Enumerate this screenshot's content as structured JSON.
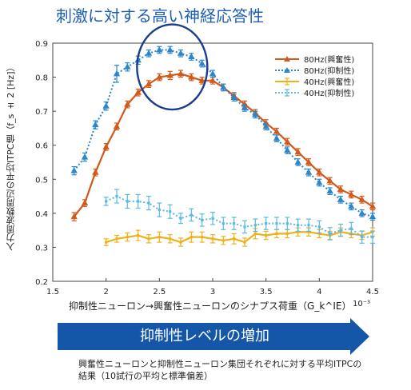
{
  "title": "刺激に対する高い神経応答性",
  "banner": "抑制性レベルの増加",
  "caption": "興奮性ニューロンと抑制性ニューロン集団それぞれに対する平均ITPCの結果（10試行の平均と標準偏差）",
  "colors": {
    "orange": "#d2581c",
    "blue": "#2b86cd",
    "yellow": "#f0b01c",
    "lightblue": "#5ab9e3",
    "circle": "#1a3d8c",
    "banner": "#1457a8"
  },
  "chart_data": {
    "type": "line",
    "xlabel": "抑制性ニューロン→興奮性ニューロンのシナプス荷重（G_k^IE）",
    "x_exponent": "10⁻³",
    "ylabel": "入力周波数周辺の平均ITPC値（f_s ± 2 [Hz]）",
    "xlim": [
      1.5,
      4.5
    ],
    "ylim": [
      0.2,
      0.9
    ],
    "xticks": [
      "1.5",
      "2",
      "2.5",
      "3",
      "3.5",
      "4",
      "4.5"
    ],
    "yticks": [
      "0.2",
      "0.3",
      "0.4",
      "0.5",
      "0.6",
      "0.7",
      "0.8",
      "0.9"
    ],
    "legend_position": "top-right",
    "grid": false,
    "series": [
      {
        "name": "80Hz(興奮性)",
        "style": "solid",
        "marker": "triangle",
        "color_key": "orange",
        "x": [
          1.7,
          1.8,
          1.9,
          2.0,
          2.1,
          2.2,
          2.3,
          2.4,
          2.5,
          2.6,
          2.7,
          2.8,
          2.9,
          3.0,
          3.1,
          3.2,
          3.3,
          3.4,
          3.5,
          3.6,
          3.7,
          3.8,
          3.9,
          4.0,
          4.1,
          4.2,
          4.3,
          4.4,
          4.5
        ],
        "y": [
          0.39,
          0.43,
          0.52,
          0.595,
          0.655,
          0.72,
          0.755,
          0.78,
          0.8,
          0.805,
          0.81,
          0.8,
          0.79,
          0.79,
          0.77,
          0.745,
          0.72,
          0.695,
          0.665,
          0.64,
          0.61,
          0.58,
          0.55,
          0.52,
          0.495,
          0.47,
          0.455,
          0.44,
          0.42
        ],
        "err": [
          0.012,
          0.01,
          0.01,
          0.01,
          0.01,
          0.01,
          0.01,
          0.01,
          0.01,
          0.012,
          0.01,
          0.01,
          0.01,
          0.01,
          0.01,
          0.01,
          0.01,
          0.01,
          0.01,
          0.01,
          0.01,
          0.01,
          0.01,
          0.01,
          0.01,
          0.01,
          0.01,
          0.01,
          0.01
        ]
      },
      {
        "name": "80Hz(抑制性)",
        "style": "dotted",
        "marker": "triangle",
        "color_key": "blue",
        "x": [
          1.7,
          1.8,
          1.9,
          2.0,
          2.1,
          2.2,
          2.3,
          2.4,
          2.5,
          2.6,
          2.7,
          2.8,
          2.9,
          3.0,
          3.1,
          3.2,
          3.3,
          3.4,
          3.5,
          3.6,
          3.7,
          3.8,
          3.9,
          4.0,
          4.1,
          4.2,
          4.3,
          4.4,
          4.5
        ],
        "y": [
          0.525,
          0.565,
          0.66,
          0.715,
          0.81,
          0.83,
          0.85,
          0.87,
          0.88,
          0.88,
          0.87,
          0.86,
          0.84,
          0.81,
          0.77,
          0.74,
          0.71,
          0.69,
          0.655,
          0.62,
          0.585,
          0.55,
          0.52,
          0.49,
          0.465,
          0.44,
          0.42,
          0.4,
          0.39
        ],
        "err": [
          0.012,
          0.012,
          0.012,
          0.012,
          0.025,
          0.012,
          0.012,
          0.01,
          0.01,
          0.01,
          0.01,
          0.01,
          0.01,
          0.01,
          0.01,
          0.01,
          0.01,
          0.01,
          0.01,
          0.01,
          0.01,
          0.01,
          0.01,
          0.01,
          0.01,
          0.01,
          0.01,
          0.01,
          0.01
        ]
      },
      {
        "name": "40Hz(興奮性)",
        "style": "solid",
        "marker": "x",
        "color_key": "yellow",
        "x": [
          2.0,
          2.1,
          2.2,
          2.3,
          2.4,
          2.5,
          2.6,
          2.7,
          2.8,
          2.9,
          3.0,
          3.1,
          3.2,
          3.3,
          3.4,
          3.5,
          3.6,
          3.7,
          3.8,
          3.9,
          4.0,
          4.1,
          4.2,
          4.3,
          4.4,
          4.5
        ],
        "y": [
          0.315,
          0.325,
          0.33,
          0.335,
          0.325,
          0.33,
          0.325,
          0.315,
          0.33,
          0.33,
          0.325,
          0.32,
          0.325,
          0.315,
          0.34,
          0.335,
          0.34,
          0.34,
          0.345,
          0.345,
          0.34,
          0.335,
          0.345,
          0.34,
          0.335,
          0.345
        ],
        "err": [
          0.01,
          0.01,
          0.012,
          0.015,
          0.012,
          0.015,
          0.012,
          0.012,
          0.015,
          0.015,
          0.012,
          0.012,
          0.015,
          0.012,
          0.015,
          0.012,
          0.012,
          0.012,
          0.012,
          0.012,
          0.012,
          0.012,
          0.012,
          0.012,
          0.012,
          0.012
        ]
      },
      {
        "name": "40Hz(抑制性)",
        "style": "dotted",
        "marker": "x",
        "color_key": "lightblue",
        "x": [
          2.0,
          2.1,
          2.2,
          2.3,
          2.4,
          2.5,
          2.6,
          2.7,
          2.8,
          2.9,
          3.0,
          3.1,
          3.2,
          3.3,
          3.4,
          3.5,
          3.6,
          3.7,
          3.8,
          3.9,
          4.0,
          4.1,
          4.2,
          4.3,
          4.4,
          4.5
        ],
        "y": [
          0.435,
          0.45,
          0.435,
          0.435,
          0.43,
          0.41,
          0.405,
          0.385,
          0.395,
          0.38,
          0.385,
          0.37,
          0.37,
          0.36,
          0.365,
          0.37,
          0.37,
          0.37,
          0.365,
          0.365,
          0.36,
          0.34,
          0.35,
          0.355,
          0.33,
          0.33
        ],
        "err": [
          0.012,
          0.02,
          0.02,
          0.02,
          0.02,
          0.02,
          0.02,
          0.015,
          0.018,
          0.018,
          0.018,
          0.018,
          0.018,
          0.018,
          0.018,
          0.018,
          0.018,
          0.018,
          0.018,
          0.018,
          0.018,
          0.018,
          0.018,
          0.018,
          0.018,
          0.018
        ]
      }
    ],
    "highlight": {
      "x": 2.62,
      "y": 0.83,
      "rx_data": 0.33,
      "ry_data": 0.125
    }
  }
}
